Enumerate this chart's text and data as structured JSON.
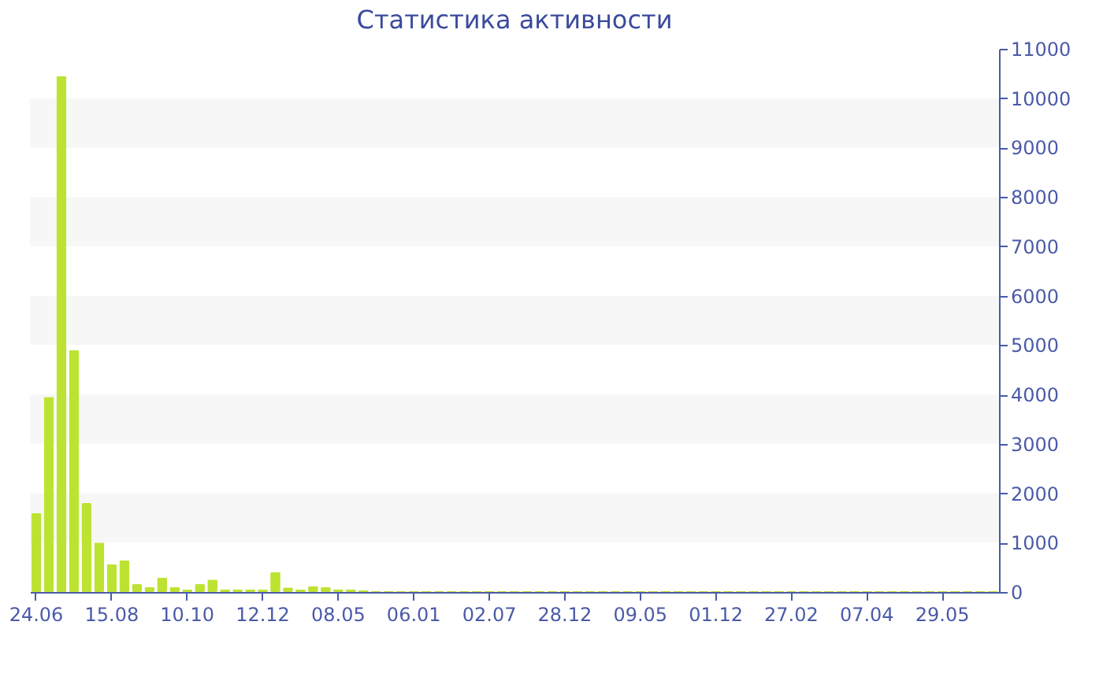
{
  "chart_data": {
    "type": "bar",
    "title": "Статистика активности",
    "categories": [
      "24.06",
      null,
      null,
      null,
      null,
      null,
      "15.08",
      null,
      null,
      null,
      null,
      null,
      "10.10",
      null,
      null,
      null,
      null,
      null,
      "12.12",
      null,
      null,
      null,
      null,
      null,
      "08.05",
      null,
      null,
      null,
      null,
      null,
      "06.01",
      null,
      null,
      null,
      null,
      null,
      "02.07",
      null,
      null,
      null,
      null,
      null,
      "28.12",
      null,
      null,
      null,
      null,
      null,
      "09.05",
      null,
      null,
      null,
      null,
      null,
      "01.12",
      null,
      null,
      null,
      null,
      null,
      "27.02",
      null,
      null,
      null,
      null,
      null,
      "07.04",
      null,
      null,
      null,
      null,
      null,
      "29.05",
      null,
      null,
      null,
      null
    ],
    "values": [
      1600,
      3950,
      10450,
      4900,
      1800,
      1000,
      560,
      640,
      160,
      100,
      290,
      100,
      50,
      160,
      250,
      50,
      50,
      50,
      50,
      400,
      90,
      50,
      120,
      100,
      50,
      50,
      30,
      20,
      20,
      20,
      20,
      20,
      20,
      20,
      20,
      20,
      20,
      20,
      20,
      20,
      20,
      20,
      20,
      20,
      20,
      20,
      20,
      20,
      20,
      20,
      20,
      20,
      20,
      20,
      20,
      20,
      20,
      20,
      20,
      20,
      20,
      20,
      20,
      20,
      20,
      20,
      20,
      20,
      20,
      20,
      20,
      20,
      20,
      20,
      20,
      20,
      20
    ],
    "color": "#bde332",
    "ylim": [
      0,
      11000
    ],
    "yticks": [
      0,
      1000,
      2000,
      3000,
      4000,
      5000,
      6000,
      7000,
      8000,
      9000,
      10000,
      11000
    ],
    "bands": [
      {
        "axis": "y",
        "from": 1000,
        "to": 2000,
        "color": "#f7f7f7"
      },
      {
        "axis": "y",
        "from": 3000,
        "to": 4000,
        "color": "#f7f7f7"
      },
      {
        "axis": "y",
        "from": 5000,
        "to": 6000,
        "color": "#f7f7f7"
      },
      {
        "axis": "y",
        "from": 7000,
        "to": 8000,
        "color": "#f7f7f7"
      },
      {
        "axis": "y",
        "from": 9000,
        "to": 10000,
        "color": "#f7f7f7"
      }
    ],
    "grid": false
  }
}
